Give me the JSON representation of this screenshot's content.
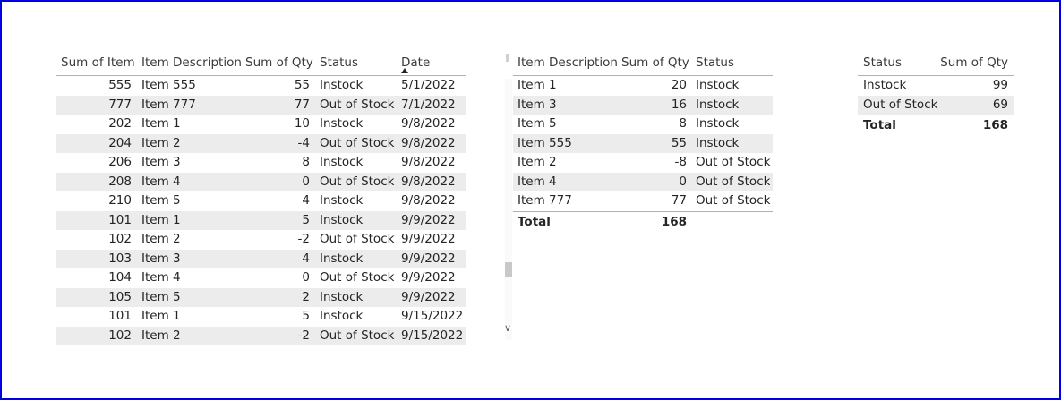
{
  "table1": {
    "headers": [
      "Sum of Item",
      "Item Description",
      "Sum of Qty",
      "Status",
      "Date"
    ],
    "rows": [
      [
        "555",
        "Item 555",
        "55",
        "Instock",
        "5/1/2022"
      ],
      [
        "777",
        "Item 777",
        "77",
        "Out of Stock",
        "7/1/2022"
      ],
      [
        "202",
        "Item 1",
        "10",
        "Instock",
        "9/8/2022"
      ],
      [
        "204",
        "Item 2",
        "-4",
        "Out of Stock",
        "9/8/2022"
      ],
      [
        "206",
        "Item 3",
        "8",
        "Instock",
        "9/8/2022"
      ],
      [
        "208",
        "Item 4",
        "0",
        "Out of Stock",
        "9/8/2022"
      ],
      [
        "210",
        "Item 5",
        "4",
        "Instock",
        "9/8/2022"
      ],
      [
        "101",
        "Item 1",
        "5",
        "Instock",
        "9/9/2022"
      ],
      [
        "102",
        "Item 2",
        "-2",
        "Out of Stock",
        "9/9/2022"
      ],
      [
        "103",
        "Item 3",
        "4",
        "Instock",
        "9/9/2022"
      ],
      [
        "104",
        "Item 4",
        "0",
        "Out of Stock",
        "9/9/2022"
      ],
      [
        "105",
        "Item 5",
        "2",
        "Instock",
        "9/9/2022"
      ],
      [
        "101",
        "Item 1",
        "5",
        "Instock",
        "9/15/2022"
      ],
      [
        "102",
        "Item 2",
        "-2",
        "Out of Stock",
        "9/15/2022"
      ]
    ]
  },
  "table2": {
    "headers": [
      "Item Description",
      "Sum of Qty",
      "Status"
    ],
    "rows": [
      [
        "Item 1",
        "20",
        "Instock"
      ],
      [
        "Item 3",
        "16",
        "Instock"
      ],
      [
        "Item 5",
        "8",
        "Instock"
      ],
      [
        "Item 555",
        "55",
        "Instock"
      ],
      [
        "Item 2",
        "-8",
        "Out of Stock"
      ],
      [
        "Item 4",
        "0",
        "Out of Stock"
      ],
      [
        "Item 777",
        "77",
        "Out of Stock"
      ]
    ],
    "total_label": "Total",
    "total_value": "168"
  },
  "table3": {
    "headers": [
      "Status",
      "Sum of Qty"
    ],
    "rows": [
      [
        "Instock",
        "99"
      ],
      [
        "Out of Stock",
        "69"
      ]
    ],
    "total_label": "Total",
    "total_value": "168"
  },
  "icons": {
    "sort": "sort-ascending-icon",
    "scroll_down": "chevron-down-icon"
  },
  "colors": {
    "frame_border": "#0000e6",
    "header_rule": "#7fc2d6",
    "alt_row": "#ececec"
  }
}
